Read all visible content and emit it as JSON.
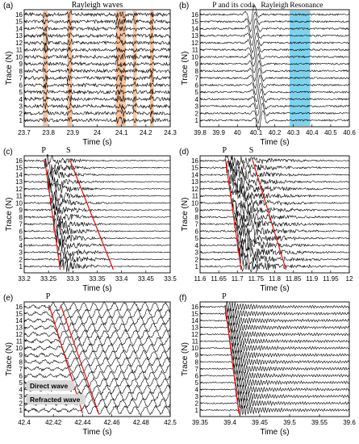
{
  "chart_data": [
    {
      "panel": "(a)",
      "type": "line",
      "title": "Rayleigh waves",
      "xlabel": "Time (s)",
      "ylabel": "Trace (N)",
      "xlim": [
        23.7,
        24.3
      ],
      "xticks": [
        23.7,
        23.8,
        23.9,
        24,
        24.1,
        24.2,
        24.3
      ],
      "xtick_labels": [
        "23.7",
        "23.8",
        "23.9",
        "24",
        "24.1",
        "24.2",
        "24.3"
      ],
      "traces": [
        1,
        2,
        3,
        4,
        5,
        6,
        7,
        8,
        9,
        10,
        11,
        12,
        13,
        14,
        15,
        16
      ],
      "highlights": [
        {
          "x0": 23.777,
          "x1": 23.797,
          "color": "#f4b184"
        },
        {
          "x0": 23.877,
          "x1": 23.897,
          "color": "#f4b184"
        },
        {
          "x0": 24.077,
          "x1": 24.117,
          "color": "#f4b184"
        },
        {
          "x0": 24.147,
          "x1": 24.162,
          "color": "#f4b184"
        },
        {
          "x0": 24.217,
          "x1": 24.232,
          "color": "#f4b184"
        }
      ],
      "lines": [],
      "annotations": []
    },
    {
      "panel": "(b)",
      "type": "line",
      "title": "",
      "xlabel": "Time (s)",
      "ylabel": "Trace (N)",
      "xlim": [
        39.8,
        40.6
      ],
      "xticks": [
        39.8,
        39.9,
        40,
        40.1,
        40.2,
        40.3,
        40.4,
        40.5,
        40.6
      ],
      "xtick_labels": [
        "39.8",
        "39.9",
        "40",
        "40.1",
        "40.2",
        "40.3",
        "40.4",
        "40.5",
        "40.6"
      ],
      "traces": [
        1,
        2,
        3,
        4,
        5,
        6,
        7,
        8,
        9,
        10,
        11,
        12,
        13,
        14,
        15,
        16
      ],
      "highlights": [
        {
          "x0": 40.28,
          "x1": 40.39,
          "color": "#56c4e8"
        }
      ],
      "lines": [],
      "annotations": [
        {
          "text": "P and its coda",
          "x": 39.98
        },
        {
          "text": "Rayleigh",
          "x": 40.2
        },
        {
          "text": "Resonance",
          "x": 40.37
        }
      ]
    },
    {
      "panel": "(c)",
      "type": "line",
      "title": "",
      "xlabel": "Time (s)",
      "ylabel": "Trace (N)",
      "xlim": [
        33.2,
        33.5
      ],
      "xticks": [
        33.2,
        33.25,
        33.3,
        33.35,
        33.4,
        33.45,
        33.5
      ],
      "xtick_labels": [
        "33.2",
        "33.25",
        "33.3",
        "33.35",
        "33.4",
        "33.45",
        "33.5"
      ],
      "traces": [
        1,
        2,
        3,
        4,
        5,
        6,
        7,
        8,
        9,
        10,
        11,
        12,
        13,
        14,
        15,
        16
      ],
      "highlights": [],
      "lines": [
        {
          "label": "P",
          "x_top": 33.242,
          "x_bottom": 33.274
        },
        {
          "label": "S",
          "x_top": 33.293,
          "x_bottom": 33.383
        }
      ],
      "annotations": []
    },
    {
      "panel": "(d)",
      "type": "line",
      "title": "",
      "xlabel": "Time (s)",
      "ylabel": "Trace (N)",
      "xlim": [
        11.6,
        12
      ],
      "xticks": [
        11.6,
        11.65,
        11.7,
        11.75,
        11.8,
        11.85,
        11.9,
        11.95,
        12
      ],
      "xtick_labels": [
        "11.6",
        "11.65",
        "11.7",
        "11.75",
        "11.8",
        "11.85",
        "11.9",
        "11.95",
        "12"
      ],
      "traces": [
        1,
        2,
        3,
        4,
        5,
        6,
        7,
        8,
        9,
        10,
        11,
        12,
        13,
        14,
        15,
        16
      ],
      "highlights": [],
      "lines": [
        {
          "label": "P",
          "x_top": 11.668,
          "x_bottom": 11.71
        },
        {
          "label": "S",
          "x_top": 11.74,
          "x_bottom": 11.83
        }
      ],
      "annotations": []
    },
    {
      "panel": "(e)",
      "type": "line",
      "title": "",
      "xlabel": "Time (s)",
      "ylabel": "Trace (N)",
      "xlim": [
        42.4,
        42.5
      ],
      "xticks": [
        42.4,
        42.42,
        42.44,
        42.46,
        42.48,
        42.5
      ],
      "xtick_labels": [
        "42.4",
        "42.42",
        "42.44",
        "42.46",
        "42.48",
        "42.5"
      ],
      "traces": [
        1,
        2,
        3,
        4,
        5,
        6,
        7,
        8,
        9,
        10,
        11,
        12,
        13,
        14,
        15,
        16
      ],
      "highlights": [],
      "lines": [
        {
          "label": "P",
          "x_top": 42.417,
          "x_bottom": 42.44
        },
        {
          "label": "",
          "x_top": 42.425,
          "x_bottom": 42.451
        }
      ],
      "annotations": [
        {
          "text": "Direct wave",
          "trace": 4.5
        },
        {
          "text": "Refracted wave",
          "trace": 2.5
        }
      ]
    },
    {
      "panel": "(f)",
      "type": "line",
      "title": "",
      "xlabel": "Time (s)",
      "ylabel": "Trace (N)",
      "xlim": [
        39.35,
        39.6
      ],
      "xticks": [
        39.35,
        39.4,
        39.45,
        39.5,
        39.55,
        39.6
      ],
      "xtick_labels": [
        "39.35",
        "39.4",
        "39.45",
        "39.5",
        "39.55",
        "39.6"
      ],
      "traces": [
        1,
        2,
        3,
        4,
        5,
        6,
        7,
        8,
        9,
        10,
        11,
        12,
        13,
        14,
        15,
        16
      ],
      "highlights": [],
      "lines": [
        {
          "label": "P",
          "x_top": 39.392,
          "x_bottom": 39.415
        }
      ],
      "annotations": []
    }
  ]
}
